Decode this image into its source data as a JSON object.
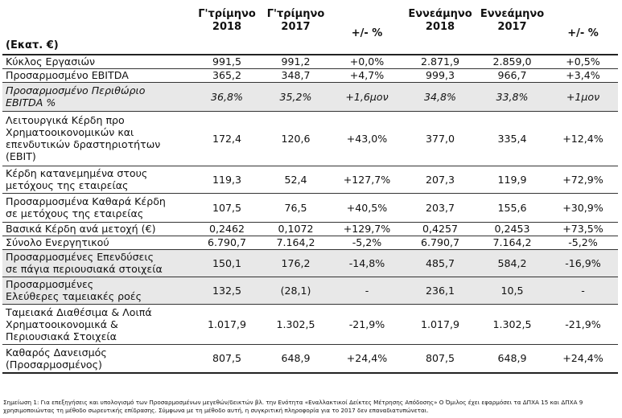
{
  "header": {
    "label": "(Εκατ. €)",
    "columns": [
      [
        "Γ'τρίμηνο",
        "2018"
      ],
      [
        "Γ'τρίμηνο",
        "2017"
      ],
      [
        "+/- %"
      ],
      [
        "Εννεάμηνο",
        "2018"
      ],
      [
        "Εννεάμηνο",
        "2017"
      ],
      [
        "+/- %"
      ]
    ]
  },
  "rows": [
    {
      "label": "Κύκλος Εργασιών",
      "values": [
        "991,5",
        "991,2",
        "+0,0%",
        "2.871,9",
        "2.859,0",
        "+0,5%"
      ],
      "shade": false,
      "italic": false
    },
    {
      "label": "Προσαρμοσμένο EBITDA",
      "values": [
        "365,2",
        "348,7",
        "+4,7%",
        "999,3",
        "966,7",
        "+3,4%"
      ],
      "shade": false,
      "italic": false
    },
    {
      "label": "Προσαρμοσμένο Περιθώριο EBITDA %",
      "values": [
        "36,8%",
        "35,2%",
        "+1,6μον",
        "34,8%",
        "33,8%",
        "+1μον"
      ],
      "shade": true,
      "italic": true
    },
    {
      "label": "Λειτουργικά Κέρδη προ Χρηματοοικονομικών και επενδυτικών δραστηριοτήτων (EBIT)",
      "values": [
        "172,4",
        "120,6",
        "+43,0%",
        "377,0",
        "335,4",
        "+12,4%"
      ],
      "shade": false,
      "italic": false
    },
    {
      "label": "Κέρδη κατανεμημένα στους μετόχους της εταιρείας",
      "values": [
        "119,3",
        "52,4",
        "+127,7%",
        "207,3",
        "119,9",
        "+72,9%"
      ],
      "shade": false,
      "italic": false
    },
    {
      "label": "Προσαρμοσμένα Καθαρά Κέρδη σε μετόχους της εταιρείας",
      "values": [
        "107,5",
        "76,5",
        "+40,5%",
        "203,7",
        "155,6",
        "+30,9%"
      ],
      "shade": false,
      "italic": false
    },
    {
      "label": "Βασικά Κέρδη ανά μετοχή (€)",
      "values": [
        "0,2462",
        "0,1072",
        "+129,7%",
        "0,4257",
        "0,2453",
        "+73,5%"
      ],
      "shade": false,
      "italic": false
    },
    {
      "label": "Σύνολο Ενεργητικού",
      "values": [
        "6.790,7",
        "7.164,2",
        "-5,2%",
        "6.790,7",
        "7.164,2",
        "-5,2%"
      ],
      "shade": false,
      "italic": false
    },
    {
      "label": "Προσαρμοσμένες Επενδύσεις σε πάγια περιουσιακά στοιχεία",
      "values": [
        "150,1",
        "176,2",
        "-14,8%",
        "485,7",
        "584,2",
        "-16,9%"
      ],
      "shade": true,
      "italic": false
    },
    {
      "label": "Προσαρμοσμένες Ελεύθερες ταμειακές ροές",
      "values": [
        "132,5",
        "(28,1)",
        "-",
        "236,1",
        "10,5",
        "-"
      ],
      "shade": true,
      "italic": false
    },
    {
      "label": "Ταμειακά Διαθέσιμα & Λοιπά Χρηματοοικονομικά & Περιουσιακά Στοιχεία",
      "values": [
        "1.017,9",
        "1.302,5",
        "-21,9%",
        "1.017,9",
        "1.302,5",
        "-21,9%"
      ],
      "shade": false,
      "italic": false
    },
    {
      "label": "Καθαρός Δανεισμός (Προσαρμοσμένος)",
      "values": [
        "807,5",
        "648,9",
        "+24,4%",
        "807,5",
        "648,9",
        "+24,4%"
      ],
      "shade": false,
      "italic": false
    }
  ],
  "footnote": "Σημείωση 1: Για επεξηγήσεις και υπολογισμό των Προσαρμοσμένων μεγεθών/δεικτών βλ. την Ενότητα «Εναλλακτικοί Δείκτες Μέτρησης Απόδοσης» Ο Όμιλος έχει εφαρμόσει τα ΔΠΧΑ 15 και ΔΠΧΑ 9 χρησιμοποιώντας τη μέθοδο σωρευτικής επίδρασης. Σύμφωνα με τη μέθοδο αυτή, η συγκριτική πληροφορία για το 2017 δεν επαναδιατυπώνεται."
}
